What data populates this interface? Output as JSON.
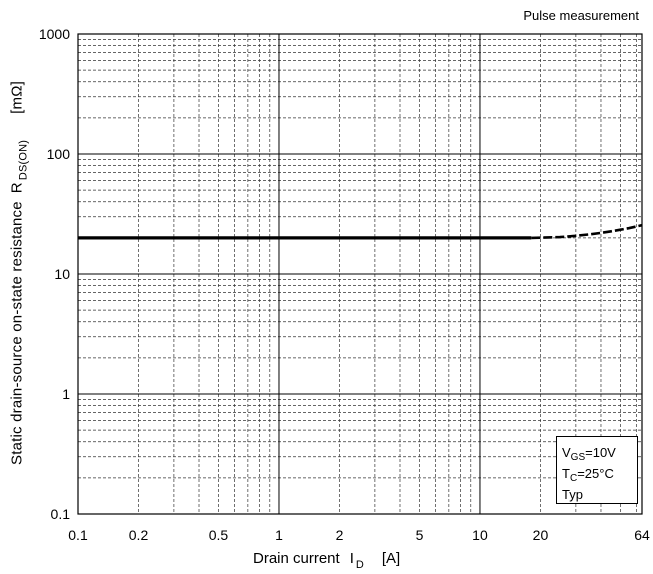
{
  "note": "Pulse measurement",
  "ylabel": {
    "text": "Static drain-source on-state resistance",
    "symbol": "R",
    "subscript": "DS(ON)",
    "unit": "[mΩ]"
  },
  "xlabel": {
    "text": "Drain current",
    "symbol": "I",
    "subscript": "D",
    "unit": "[A]"
  },
  "conditions": {
    "vgs_symbol": "V",
    "vgs_sub": "GS",
    "vgs_value": "=10V",
    "tc_symbol": "T",
    "tc_sub": "C",
    "tc_value": "=25°C",
    "typ": "Typ"
  },
  "chart_data": {
    "type": "line",
    "xscale": "log",
    "yscale": "log",
    "xlim": [
      0.1,
      64
    ],
    "ylim": [
      0.1,
      1000
    ],
    "grid": true,
    "xticks": [
      0.1,
      0.2,
      0.5,
      1,
      2,
      5,
      10,
      20,
      64
    ],
    "xtick_labels": [
      "0.1",
      "0.2",
      "0.5",
      "1",
      "2",
      "5",
      "10",
      "20",
      "64"
    ],
    "yticks": [
      0.1,
      1,
      10,
      100,
      1000
    ],
    "ytick_labels": [
      "0.1",
      "1",
      "10",
      "100",
      "1000"
    ],
    "series": [
      {
        "solid": {
          "x": [
            0.1,
            0.5,
            1,
            5,
            10,
            18
          ],
          "y": [
            20,
            20,
            20,
            20,
            20,
            20
          ]
        },
        "dashed": {
          "x": [
            18,
            25,
            30,
            35,
            40,
            45,
            50,
            55,
            64
          ],
          "y": [
            20,
            20.3,
            20.8,
            21.4,
            22,
            22.7,
            23.4,
            24.1,
            25.5
          ]
        }
      }
    ]
  }
}
